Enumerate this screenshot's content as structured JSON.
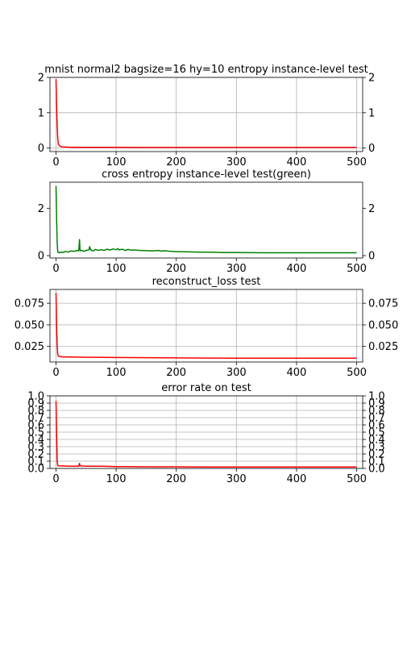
{
  "chart_data": [
    {
      "type": "line",
      "title": "mnist normal2 bagsize=16 hy=10 entropy instance-level test",
      "xlabel": "",
      "ylabel": "",
      "xlim": [
        -10,
        510
      ],
      "ylim": [
        -0.1,
        2.0
      ],
      "xticks": [
        0,
        100,
        200,
        300,
        400,
        500
      ],
      "yticks": [
        0,
        1,
        2
      ],
      "grid": true,
      "right_axis_ticks": true,
      "series": [
        {
          "color": "#ff0000",
          "x": [
            0,
            1,
            2,
            3,
            4,
            5,
            7,
            10,
            15,
            20,
            30,
            40,
            50,
            75,
            100,
            150,
            200,
            250,
            300,
            350,
            400,
            450,
            500
          ],
          "y": [
            1.95,
            1.2,
            0.6,
            0.25,
            0.12,
            0.08,
            0.05,
            0.035,
            0.03,
            0.025,
            0.02,
            0.02,
            0.02,
            0.018,
            0.018,
            0.017,
            0.017,
            0.017,
            0.016,
            0.016,
            0.016,
            0.016,
            0.016
          ]
        }
      ]
    },
    {
      "type": "line",
      "title": "cross entropy instance-level test(green)",
      "xlabel": "",
      "ylabel": "",
      "xlim": [
        -10,
        510
      ],
      "ylim": [
        -0.1,
        3.1
      ],
      "xticks": [
        0,
        100,
        200,
        300,
        400,
        500
      ],
      "yticks": [
        0,
        2
      ],
      "grid": false,
      "right_axis_ticks": true,
      "series": [
        {
          "color": "#008000",
          "x": [
            0,
            1,
            2,
            3,
            5,
            8,
            12,
            16,
            20,
            25,
            30,
            35,
            38,
            39,
            40,
            41,
            43,
            47,
            50,
            55,
            56,
            58,
            62,
            66,
            70,
            75,
            80,
            85,
            90,
            95,
            100,
            103,
            105,
            110,
            115,
            120,
            125,
            130,
            140,
            150,
            160,
            170,
            175,
            180,
            190,
            200,
            220,
            240,
            260,
            280,
            300,
            350,
            400,
            450,
            500
          ],
          "y": [
            2.95,
            1.6,
            0.5,
            0.15,
            0.12,
            0.15,
            0.13,
            0.18,
            0.15,
            0.2,
            0.18,
            0.22,
            0.2,
            0.68,
            0.25,
            0.2,
            0.22,
            0.18,
            0.22,
            0.25,
            0.38,
            0.24,
            0.2,
            0.26,
            0.22,
            0.25,
            0.22,
            0.27,
            0.24,
            0.28,
            0.25,
            0.3,
            0.24,
            0.27,
            0.22,
            0.26,
            0.23,
            0.24,
            0.22,
            0.21,
            0.2,
            0.22,
            0.19,
            0.21,
            0.18,
            0.17,
            0.16,
            0.15,
            0.14,
            0.13,
            0.13,
            0.12,
            0.12,
            0.12,
            0.12
          ]
        }
      ]
    },
    {
      "type": "line",
      "title": "reconstruct_loss test",
      "xlabel": "",
      "ylabel": "",
      "xlim": [
        -10,
        510
      ],
      "ylim": [
        0.007,
        0.091
      ],
      "xticks": [
        0,
        100,
        200,
        300,
        400,
        500
      ],
      "yticks": [
        0.025,
        0.05,
        0.075
      ],
      "ytick_labels": [
        "0.025",
        "0.050",
        "0.075"
      ],
      "grid": true,
      "right_axis_ticks": true,
      "series": [
        {
          "color": "#ff0000",
          "x": [
            0,
            1,
            2,
            3,
            4,
            6,
            10,
            20,
            50,
            100,
            150,
            200,
            250,
            300,
            350,
            400,
            450,
            500
          ],
          "y": [
            0.087,
            0.05,
            0.025,
            0.015,
            0.014,
            0.0135,
            0.013,
            0.0128,
            0.0125,
            0.0122,
            0.012,
            0.0118,
            0.0116,
            0.0115,
            0.0115,
            0.0114,
            0.0114,
            0.0114
          ]
        }
      ]
    },
    {
      "type": "line",
      "title": "error rate on test",
      "xlabel": "",
      "ylabel": "",
      "xlim": [
        -10,
        510
      ],
      "ylim": [
        0.0,
        1.0
      ],
      "xticks": [
        0,
        100,
        200,
        300,
        400,
        500
      ],
      "yticks": [
        0.0,
        0.1,
        0.2,
        0.3,
        0.4,
        0.5,
        0.6,
        0.7,
        0.8,
        0.9,
        1.0
      ],
      "ytick_labels": [
        "0.0",
        "0.1",
        "0.2",
        "0.3",
        "0.4",
        "0.5",
        "0.6",
        "0.7",
        "0.8",
        "0.9",
        "1.0"
      ],
      "grid": true,
      "right_axis_ticks": true,
      "series": [
        {
          "color": "#ff0000",
          "x": [
            0,
            1,
            2,
            3,
            5,
            10,
            20,
            30,
            38,
            39,
            40,
            42,
            50,
            60,
            80,
            100,
            120,
            150,
            200,
            250,
            300,
            350,
            400,
            450,
            500
          ],
          "y": [
            0.93,
            0.5,
            0.1,
            0.04,
            0.035,
            0.035,
            0.032,
            0.03,
            0.03,
            0.07,
            0.04,
            0.035,
            0.03,
            0.03,
            0.03,
            0.025,
            0.025,
            0.022,
            0.022,
            0.02,
            0.02,
            0.02,
            0.02,
            0.02,
            0.02
          ]
        }
      ]
    }
  ]
}
